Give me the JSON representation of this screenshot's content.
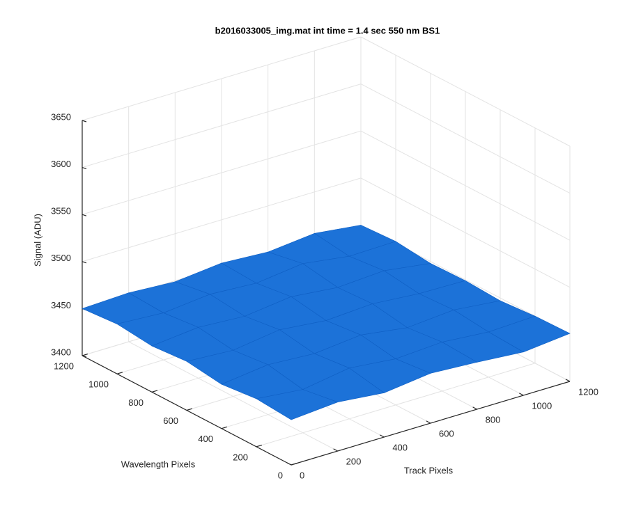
{
  "chart_data": {
    "type": "surface",
    "title": "b2016033005_img.mat int time = 1.4 sec  550 nm BS1",
    "xlabel": "Track Pixels",
    "ylabel": "Wavelength Pixels",
    "zlabel": "Signal (ADU)",
    "x": [
      0,
      200,
      400,
      600,
      800,
      1000,
      1200
    ],
    "y": [
      0,
      200,
      400,
      600,
      800,
      1000,
      1200
    ],
    "z": [
      [
        3448,
        3452,
        3447,
        3453,
        3450,
        3446,
        3451
      ],
      [
        3451,
        3446,
        3454,
        3449,
        3452,
        3448,
        3450
      ],
      [
        3447,
        3453,
        3450,
        3455,
        3448,
        3452,
        3447
      ],
      [
        3452,
        3449,
        3456,
        3451,
        3454,
        3450,
        3449
      ],
      [
        3449,
        3454,
        3451,
        3457,
        3452,
        3455,
        3448
      ],
      [
        3453,
        3450,
        3455,
        3452,
        3458,
        3451,
        3452
      ],
      [
        3450,
        3452,
        3449,
        3454,
        3451,
        3456,
        3450
      ]
    ],
    "color": "#1c72d8",
    "xlim": [
      0,
      1200
    ],
    "ylim": [
      0,
      1200
    ],
    "zlim": [
      3400,
      3650
    ],
    "xticks": [
      0,
      200,
      400,
      600,
      800,
      1000,
      1200
    ],
    "yticks": [
      0,
      200,
      400,
      600,
      800,
      1000,
      1200
    ],
    "zticks": [
      3400,
      3450,
      3500,
      3550,
      3600,
      3650
    ],
    "grid": true
  }
}
